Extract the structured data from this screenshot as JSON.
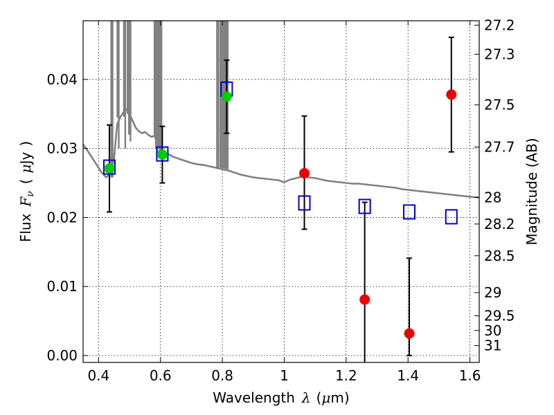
{
  "chart_data": {
    "type": "scatter",
    "title": "",
    "xlabel_text": "Wavelength",
    "xlabel_symbol": "λ",
    "xlabel_unit_open": "(",
    "xlabel_unit_mu": "μ",
    "xlabel_unit_rest": "m)",
    "ylabel_text": "Flux",
    "ylabel_symbol": "F",
    "ylabel_subscript": "ν",
    "ylabel_unit_open": "(",
    "ylabel_unit_mu": "μ",
    "ylabel_unit_rest": "Jy",
    "ylabel_unit_close": ")",
    "y2label": "Magnitude (AB)",
    "xlim": [
      0.35,
      1.63
    ],
    "ylim": [
      -0.001,
      0.0485
    ],
    "xticks": [
      0.4,
      0.6,
      0.8,
      1.0,
      1.2,
      1.4,
      1.6
    ],
    "xtick_labels": [
      "0.4",
      "0.6",
      "0.8",
      "1",
      "1.2",
      "1.4",
      "1.6"
    ],
    "yticks": [
      0.0,
      0.01,
      0.02,
      0.03,
      0.04
    ],
    "ytick_labels": [
      "0.00",
      "0.01",
      "0.02",
      "0.03",
      "0.04"
    ],
    "mag_ticks": [
      27.2,
      27.3,
      27.5,
      27.7,
      28,
      28.2,
      28.5,
      29,
      29.5,
      30,
      31
    ],
    "mag_tick_labels": [
      "27.2",
      "27.3",
      "27.5",
      "27.7",
      "28",
      "28.2",
      "28.5",
      "29",
      "29.5",
      "30",
      "31"
    ],
    "grid": true,
    "series": [
      {
        "name": "model_sed",
        "kind": "line",
        "color": "#808080",
        "x": [
          0.35,
          0.37,
          0.39,
          0.41,
          0.425,
          0.44,
          0.45,
          0.455,
          0.46,
          0.47,
          0.48,
          0.49,
          0.5,
          0.51,
          0.52,
          0.53,
          0.54,
          0.55,
          0.56,
          0.57,
          0.58,
          0.59,
          0.6,
          0.62,
          0.64,
          0.66,
          0.68,
          0.7,
          0.72,
          0.74,
          0.76,
          0.78,
          0.8,
          0.82,
          0.84,
          0.86,
          0.88,
          0.9,
          0.92,
          0.94,
          0.96,
          0.98,
          1.0,
          1.02,
          1.04,
          1.06,
          1.08,
          1.1,
          1.12,
          1.14,
          1.16,
          1.18,
          1.2,
          1.22,
          1.24,
          1.26,
          1.28,
          1.3,
          1.32,
          1.34,
          1.36,
          1.38,
          1.4,
          1.42,
          1.44,
          1.46,
          1.48,
          1.5,
          1.52,
          1.54,
          1.56,
          1.58,
          1.6,
          1.63
        ],
        "y": [
          0.0306,
          0.0293,
          0.0279,
          0.0265,
          0.0258,
          0.0265,
          0.0285,
          0.031,
          0.0335,
          0.0345,
          0.0352,
          0.0357,
          0.035,
          0.034,
          0.033,
          0.0325,
          0.0322,
          0.0324,
          0.032,
          0.0317,
          0.0318,
          0.031,
          0.03,
          0.0293,
          0.0288,
          0.0285,
          0.0282,
          0.0279,
          0.0277,
          0.0276,
          0.0274,
          0.0272,
          0.027,
          0.0268,
          0.0265,
          0.0262,
          0.026,
          0.0258,
          0.0257,
          0.0256,
          0.0255,
          0.0254,
          0.0251,
          0.0255,
          0.0257,
          0.026,
          0.0258,
          0.0257,
          0.0255,
          0.0253,
          0.0252,
          0.0251,
          0.025,
          0.0249,
          0.0249,
          0.0248,
          0.0247,
          0.0246,
          0.0245,
          0.0244,
          0.0243,
          0.0241,
          0.024,
          0.0239,
          0.0238,
          0.0237,
          0.0236,
          0.0235,
          0.0234,
          0.0233,
          0.0232,
          0.0231,
          0.023,
          0.0229
        ]
      },
      {
        "name": "emission_lines",
        "kind": "spikes",
        "color": "#808080",
        "x": [
          0.443,
          0.463,
          0.484,
          0.496,
          0.501,
          0.583,
          0.588,
          0.596,
          0.601,
          0.785,
          0.796,
          0.806,
          0.815
        ],
        "y_base": [
          0.0258,
          0.0345,
          0.0346,
          0.035,
          0.0352,
          0.0318,
          0.0316,
          0.0305,
          0.0303,
          0.0272,
          0.0272,
          0.0271,
          0.027
        ],
        "y_min": [
          0.0258,
          0.03,
          0.03,
          0.032,
          0.031,
          0.03,
          0.0295,
          0.029,
          0.029,
          0.0272,
          0.0272,
          0.0271,
          0.027
        ],
        "y_top": [
          0.0485,
          0.0485,
          0.0485,
          0.0485,
          0.0485,
          0.0485,
          0.0485,
          0.0485,
          0.0485,
          0.0485,
          0.0485,
          0.0485,
          0.0485
        ]
      },
      {
        "name": "model_photometry",
        "kind": "square",
        "color": "#0000cc",
        "x": [
          0.435,
          0.606,
          0.814,
          1.065,
          1.26,
          1.404,
          1.54
        ],
        "y": [
          0.0273,
          0.0292,
          0.0386,
          0.0221,
          0.0216,
          0.0208,
          0.0201
        ]
      },
      {
        "name": "observed_detections",
        "kind": "circle",
        "color": "#00cc00",
        "x": [
          0.435,
          0.606,
          0.814
        ],
        "y": [
          0.0271,
          0.0291,
          0.0375
        ],
        "yerr_low": [
          0.0063,
          0.0041,
          0.0053
        ],
        "yerr_high": [
          0.0063,
          0.0041,
          0.0053
        ]
      },
      {
        "name": "observed_nir",
        "kind": "circle",
        "color": "#ee0000",
        "x": [
          1.065,
          1.26,
          1.404,
          1.54
        ],
        "y": [
          0.0264,
          0.0081,
          0.0032,
          0.0378
        ],
        "yerr_low": [
          0.0081,
          0.0092,
          0.0032,
          0.0083
        ],
        "yerr_high": [
          0.0083,
          0.0141,
          0.0109,
          0.0083
        ]
      }
    ]
  }
}
